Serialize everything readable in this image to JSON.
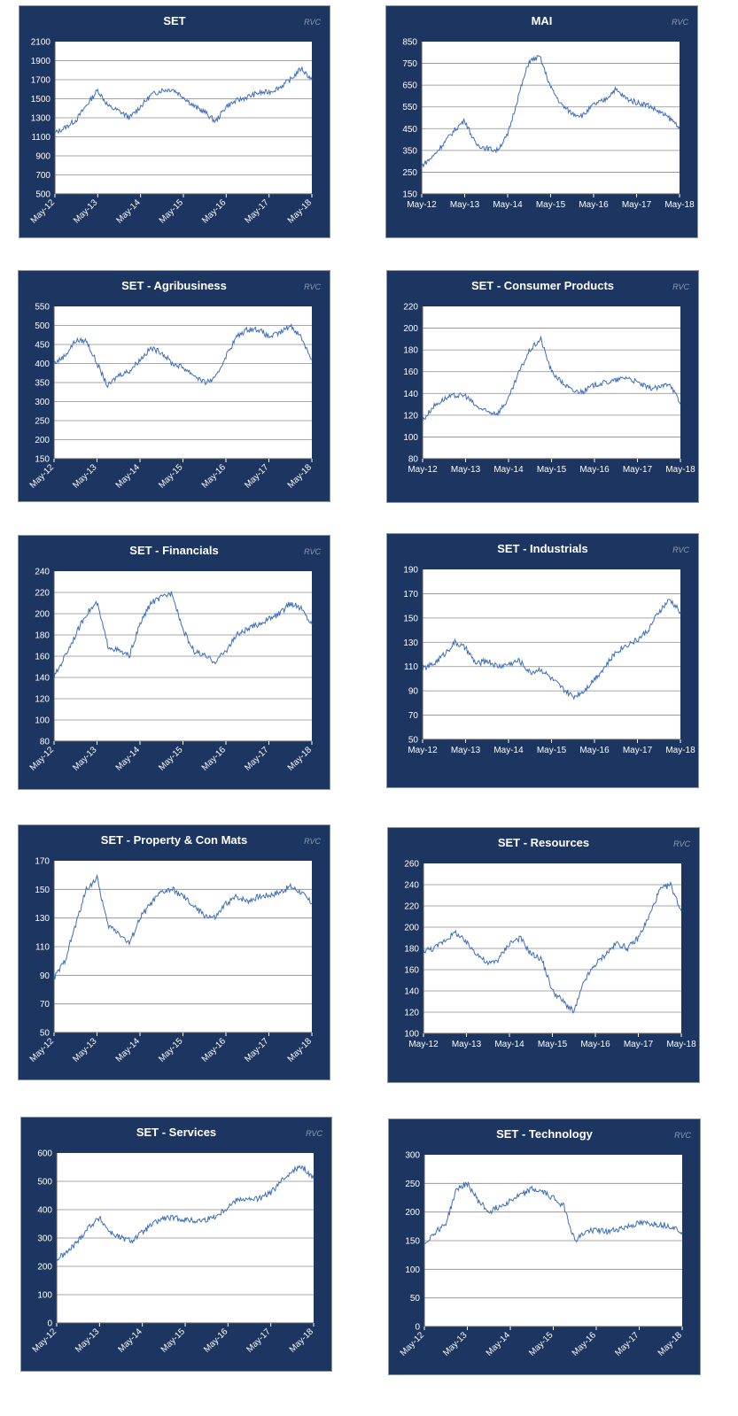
{
  "watermark": "RVC",
  "colors": {
    "panel": "#1c3561",
    "plot": "#ffffff",
    "grid": "#8a8a8a",
    "line": "#3d6fb8"
  },
  "x_tick_labels": [
    "May-12",
    "May-13",
    "May-14",
    "May-15",
    "May-16",
    "May-17",
    "May-18"
  ],
  "chart_data": [
    {
      "type": "line",
      "title": "SET",
      "ylim": [
        500,
        2100
      ],
      "yticks": [
        500,
        700,
        900,
        1100,
        1300,
        1500,
        1700,
        1900,
        2100
      ],
      "x": [
        "May-12",
        "Aug-12",
        "Nov-12",
        "Feb-13",
        "May-13",
        "Aug-13",
        "Nov-13",
        "Feb-14",
        "May-14",
        "Aug-14",
        "Nov-14",
        "Feb-15",
        "May-15",
        "Aug-15",
        "Nov-15",
        "Feb-16",
        "May-16",
        "Aug-16",
        "Nov-16",
        "Feb-17",
        "May-17",
        "Aug-17",
        "Nov-17",
        "Feb-18",
        "May-18"
      ],
      "values": [
        1140,
        1200,
        1280,
        1440,
        1590,
        1420,
        1370,
        1300,
        1420,
        1540,
        1590,
        1600,
        1520,
        1420,
        1360,
        1260,
        1420,
        1480,
        1520,
        1560,
        1570,
        1620,
        1700,
        1820,
        1700
      ],
      "xtick_rotated": true
    },
    {
      "type": "line",
      "title": "MAI",
      "ylim": [
        150,
        850
      ],
      "yticks": [
        150,
        250,
        350,
        450,
        550,
        650,
        750,
        850
      ],
      "x": [
        "May-12",
        "Aug-12",
        "Nov-12",
        "Feb-13",
        "May-13",
        "Aug-13",
        "Nov-13",
        "Feb-14",
        "May-14",
        "Aug-14",
        "Nov-14",
        "Feb-15",
        "May-15",
        "Aug-15",
        "Nov-15",
        "Feb-16",
        "May-16",
        "Aug-16",
        "Nov-16",
        "Feb-17",
        "May-17",
        "Aug-17",
        "Nov-17",
        "Feb-18",
        "May-18"
      ],
      "values": [
        280,
        320,
        380,
        440,
        490,
        380,
        360,
        350,
        420,
        600,
        760,
        780,
        640,
        560,
        520,
        510,
        560,
        580,
        630,
        590,
        570,
        560,
        530,
        500,
        460
      ],
      "xtick_rotated": false
    },
    {
      "type": "line",
      "title": "SET - Agribusiness",
      "ylim": [
        150,
        550
      ],
      "yticks": [
        150,
        200,
        250,
        300,
        350,
        400,
        450,
        500,
        550
      ],
      "x": [
        "May-12",
        "Aug-12",
        "Nov-12",
        "Feb-13",
        "May-13",
        "Aug-13",
        "Nov-13",
        "Feb-14",
        "May-14",
        "Aug-14",
        "Nov-14",
        "Feb-15",
        "May-15",
        "Aug-15",
        "Nov-15",
        "Feb-16",
        "May-16",
        "Aug-16",
        "Nov-16",
        "Feb-17",
        "May-17",
        "Aug-17",
        "Nov-17",
        "Feb-18",
        "May-18"
      ],
      "values": [
        400,
        420,
        460,
        460,
        400,
        340,
        370,
        380,
        410,
        440,
        430,
        400,
        390,
        370,
        350,
        360,
        420,
        470,
        490,
        490,
        470,
        480,
        500,
        470,
        410
      ],
      "xtick_rotated": true
    },
    {
      "type": "line",
      "title": "SET - Consumer Products",
      "ylim": [
        80,
        220
      ],
      "yticks": [
        80,
        100,
        120,
        140,
        160,
        180,
        200,
        220
      ],
      "x": [
        "May-12",
        "Aug-12",
        "Nov-12",
        "Feb-13",
        "May-13",
        "Aug-13",
        "Nov-13",
        "Feb-14",
        "May-14",
        "Aug-14",
        "Nov-14",
        "Feb-15",
        "May-15",
        "Aug-15",
        "Nov-15",
        "Feb-16",
        "May-16",
        "Aug-16",
        "Nov-16",
        "Feb-17",
        "May-17",
        "Aug-17",
        "Nov-17",
        "Feb-18",
        "May-18"
      ],
      "values": [
        115,
        128,
        135,
        138,
        138,
        128,
        123,
        122,
        135,
        160,
        180,
        190,
        160,
        150,
        142,
        142,
        148,
        150,
        152,
        155,
        150,
        145,
        145,
        150,
        130
      ],
      "xtick_rotated": false
    },
    {
      "type": "line",
      "title": "SET - Financials",
      "ylim": [
        80,
        240
      ],
      "yticks": [
        80,
        100,
        120,
        140,
        160,
        180,
        200,
        220,
        240
      ],
      "x": [
        "May-12",
        "Aug-12",
        "Nov-12",
        "Feb-13",
        "May-13",
        "Aug-13",
        "Nov-13",
        "Feb-14",
        "May-14",
        "Aug-14",
        "Nov-14",
        "Feb-15",
        "May-15",
        "Aug-15",
        "Nov-15",
        "Feb-16",
        "May-16",
        "Aug-16",
        "Nov-16",
        "Feb-17",
        "May-17",
        "Aug-17",
        "Nov-17",
        "Feb-18",
        "May-18"
      ],
      "values": [
        140,
        160,
        180,
        200,
        210,
        170,
        165,
        160,
        190,
        210,
        215,
        220,
        185,
        165,
        160,
        155,
        165,
        180,
        185,
        190,
        195,
        200,
        210,
        205,
        190
      ],
      "xtick_rotated": true
    },
    {
      "type": "line",
      "title": "SET - Industrials",
      "ylim": [
        50,
        190
      ],
      "yticks": [
        50,
        70,
        90,
        110,
        130,
        150,
        170,
        190
      ],
      "x": [
        "May-12",
        "Aug-12",
        "Nov-12",
        "Feb-13",
        "May-13",
        "Aug-13",
        "Nov-13",
        "Feb-14",
        "May-14",
        "Aug-14",
        "Nov-14",
        "Feb-15",
        "May-15",
        "Aug-15",
        "Nov-15",
        "Feb-16",
        "May-16",
        "Aug-16",
        "Nov-16",
        "Feb-17",
        "May-17",
        "Aug-17",
        "Nov-17",
        "Feb-18",
        "May-18"
      ],
      "values": [
        108,
        112,
        120,
        130,
        125,
        112,
        115,
        110,
        112,
        115,
        105,
        108,
        100,
        92,
        85,
        90,
        100,
        110,
        122,
        128,
        132,
        140,
        155,
        165,
        155
      ],
      "xtick_rotated": false
    },
    {
      "type": "line",
      "title": "SET - Property & Con Mats",
      "ylim": [
        50,
        170
      ],
      "yticks": [
        50,
        70,
        90,
        110,
        130,
        150,
        170
      ],
      "x": [
        "May-12",
        "Aug-12",
        "Nov-12",
        "Feb-13",
        "May-13",
        "Aug-13",
        "Nov-13",
        "Feb-14",
        "May-14",
        "Aug-14",
        "Nov-14",
        "Feb-15",
        "May-15",
        "Aug-15",
        "Nov-15",
        "Feb-16",
        "May-16",
        "Aug-16",
        "Nov-16",
        "Feb-17",
        "May-17",
        "Aug-17",
        "Nov-17",
        "Feb-18",
        "May-18"
      ],
      "values": [
        88,
        100,
        125,
        150,
        158,
        125,
        120,
        112,
        130,
        140,
        148,
        150,
        145,
        138,
        132,
        130,
        140,
        145,
        142,
        145,
        146,
        148,
        152,
        148,
        140
      ],
      "xtick_rotated": true
    },
    {
      "type": "line",
      "title": "SET - Resources",
      "ylim": [
        100,
        260
      ],
      "yticks": [
        100,
        120,
        140,
        160,
        180,
        200,
        220,
        240,
        260
      ],
      "x": [
        "May-12",
        "Aug-12",
        "Nov-12",
        "Feb-13",
        "May-13",
        "Aug-13",
        "Nov-13",
        "Feb-14",
        "May-14",
        "Aug-14",
        "Nov-14",
        "Feb-15",
        "May-15",
        "Aug-15",
        "Nov-15",
        "Feb-16",
        "May-16",
        "Aug-16",
        "Nov-16",
        "Feb-17",
        "May-17",
        "Aug-17",
        "Nov-17",
        "Feb-18",
        "May-18"
      ],
      "values": [
        178,
        180,
        188,
        195,
        185,
        175,
        165,
        170,
        185,
        190,
        175,
        170,
        140,
        130,
        120,
        150,
        165,
        175,
        185,
        180,
        190,
        210,
        235,
        240,
        215
      ],
      "xtick_rotated": false
    },
    {
      "type": "line",
      "title": "SET - Services",
      "ylim": [
        0,
        600
      ],
      "yticks": [
        0,
        100,
        200,
        300,
        400,
        500,
        600
      ],
      "x": [
        "May-12",
        "Aug-12",
        "Nov-12",
        "Feb-13",
        "May-13",
        "Aug-13",
        "Nov-13",
        "Feb-14",
        "May-14",
        "Aug-14",
        "Nov-14",
        "Feb-15",
        "May-15",
        "Aug-15",
        "Nov-15",
        "Feb-16",
        "May-16",
        "Aug-16",
        "Nov-16",
        "Feb-17",
        "May-17",
        "Aug-17",
        "Nov-17",
        "Feb-18",
        "May-18"
      ],
      "values": [
        225,
        250,
        290,
        340,
        370,
        320,
        300,
        290,
        320,
        350,
        370,
        370,
        365,
        360,
        365,
        380,
        410,
        440,
        435,
        440,
        460,
        500,
        540,
        550,
        510
      ],
      "xtick_rotated": true
    },
    {
      "type": "line",
      "title": "SET - Technology",
      "ylim": [
        0,
        300
      ],
      "yticks": [
        0,
        50,
        100,
        150,
        200,
        250,
        300
      ],
      "x": [
        "May-12",
        "Aug-12",
        "Nov-12",
        "Feb-13",
        "May-13",
        "Aug-13",
        "Nov-13",
        "Feb-14",
        "May-14",
        "Aug-14",
        "Nov-14",
        "Feb-15",
        "May-15",
        "Aug-15",
        "Nov-15",
        "Feb-16",
        "May-16",
        "Aug-16",
        "Nov-16",
        "Feb-17",
        "May-17",
        "Aug-17",
        "Nov-17",
        "Feb-18",
        "May-18"
      ],
      "values": [
        145,
        165,
        180,
        240,
        250,
        220,
        200,
        210,
        220,
        230,
        240,
        235,
        225,
        210,
        150,
        165,
        170,
        165,
        170,
        175,
        180,
        180,
        178,
        175,
        165
      ],
      "xtick_rotated": true
    }
  ]
}
